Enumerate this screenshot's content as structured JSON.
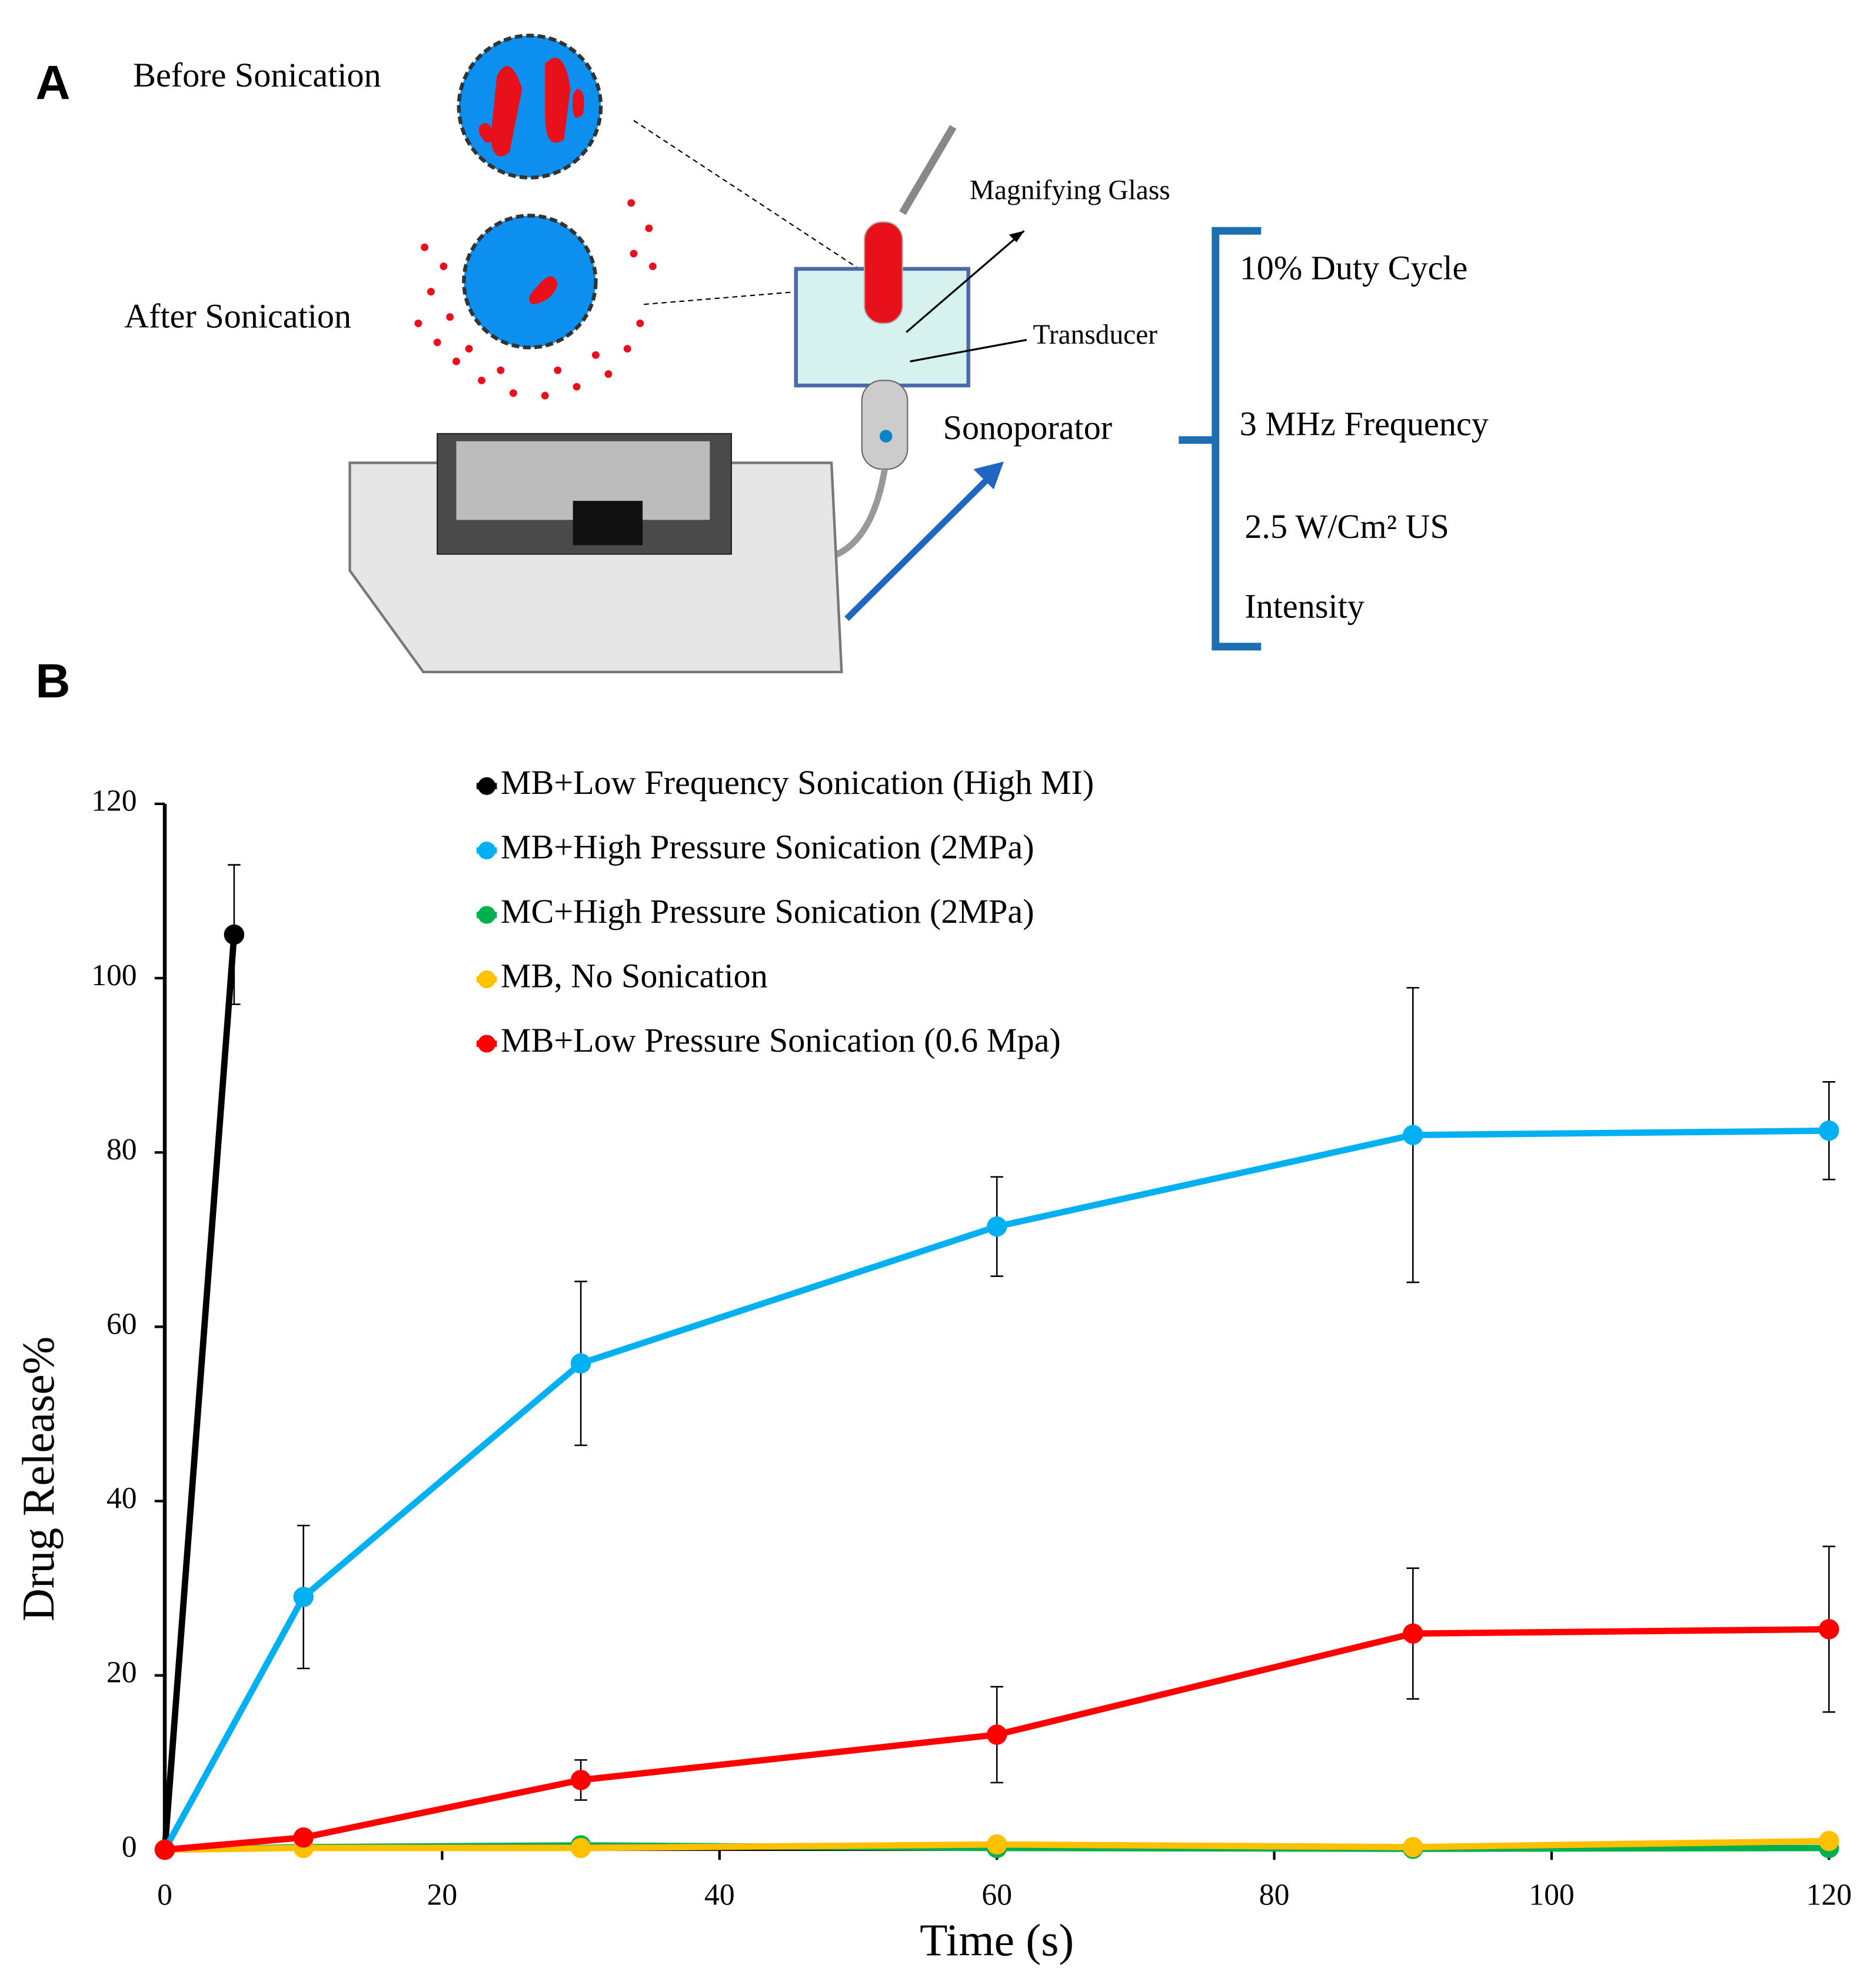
{
  "panels": {
    "a": "A",
    "b": "B"
  },
  "diagram": {
    "before": "Before Sonication",
    "after": "After Sonication",
    "magnifying_glass": "Magnifying Glass",
    "transducer": "Transducer",
    "sonoporator": "Sonoporator",
    "settings": [
      "10%  Duty Cycle",
      "3 MHz Frequency",
      "2.5 W/Cm² US",
      "Intensity"
    ]
  },
  "chart_data": {
    "type": "line",
    "xlabel": "Time (s)",
    "ylabel": "Drug Release%",
    "xlim": [
      0,
      120
    ],
    "xticks": [
      0,
      20,
      40,
      60,
      80,
      100,
      120
    ],
    "ylim": [
      0,
      120
    ],
    "yticks": [
      0,
      20,
      40,
      60,
      80,
      100,
      120
    ],
    "series": [
      {
        "name": "MB+Low Frequency Sonication (High MI)",
        "color": "#000000",
        "x": [
          0,
          5
        ],
        "values": [
          0,
          105
        ],
        "errors": [
          null,
          8
        ]
      },
      {
        "name": "MB+High Pressure Sonication (2MPa)",
        "color": "#00b0f0",
        "x": [
          0,
          10,
          30,
          60,
          90,
          120
        ],
        "values": [
          0,
          29,
          55.8,
          71.5,
          82,
          82.5
        ],
        "errors": [
          null,
          8.2,
          9.4,
          5.7,
          16.9,
          5.6
        ]
      },
      {
        "name": "MC+High Pressure Sonication (2MPa)",
        "color": "#00b050",
        "x": [
          0,
          10,
          30,
          60,
          90,
          120
        ],
        "values": [
          0,
          0.3,
          0.5,
          0.2,
          0.1,
          0.2
        ],
        "errors": [
          null,
          null,
          null,
          null,
          null,
          null
        ]
      },
      {
        "name": "MB, No Sonication",
        "color": "#ffc000",
        "x": [
          0,
          10,
          30,
          60,
          90,
          120
        ],
        "values": [
          0,
          0.2,
          0.2,
          0.6,
          0.3,
          1
        ],
        "errors": [
          null,
          null,
          null,
          null,
          null,
          null
        ]
      },
      {
        "name": "MB+Low Pressure Sonication (0.6 Mpa)",
        "color": "#ff0000",
        "x": [
          0,
          10,
          30,
          60,
          90,
          120
        ],
        "values": [
          0,
          1.4,
          8,
          13.2,
          24.8,
          25.3
        ],
        "errors": [
          null,
          null,
          2.3,
          5.5,
          7.5,
          9.5
        ]
      }
    ]
  }
}
